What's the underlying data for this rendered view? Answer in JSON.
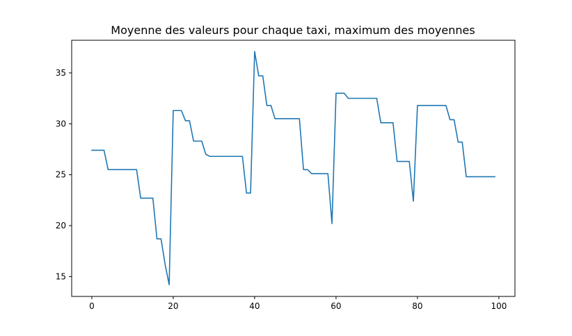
{
  "chart_data": {
    "type": "line",
    "title": "Moyenne des valeurs pour chaque taxi, maximum des moyennes",
    "xlabel": "",
    "ylabel": "",
    "xlim": [
      -4.95,
      103.95
    ],
    "ylim": [
      13.05,
      38.2
    ],
    "xticks": [
      0,
      20,
      40,
      60,
      80,
      100
    ],
    "yticks": [
      15,
      20,
      25,
      30,
      35
    ],
    "grid": false,
    "line_color": "#1f77b4",
    "series": [
      {
        "x": [
          0,
          1,
          2,
          3,
          4,
          5,
          6,
          7,
          8,
          9,
          10,
          11,
          12,
          13,
          14,
          15,
          16,
          17,
          18,
          19,
          20,
          21,
          22,
          23,
          24,
          25,
          26,
          27,
          28,
          29,
          30,
          31,
          32,
          33,
          34,
          35,
          36,
          37,
          38,
          39,
          40,
          41,
          42,
          43,
          44,
          45,
          46,
          47,
          48,
          49,
          50,
          51,
          52,
          53,
          54,
          55,
          56,
          57,
          58,
          59,
          60,
          61,
          62,
          63,
          64,
          65,
          66,
          67,
          68,
          69,
          70,
          71,
          72,
          73,
          74,
          75,
          76,
          77,
          78,
          79,
          80,
          81,
          82,
          83,
          84,
          85,
          86,
          87,
          88,
          89,
          90,
          91,
          92,
          93,
          94,
          95,
          96,
          97,
          98,
          99
        ],
        "values": [
          27.4,
          27.4,
          27.4,
          27.4,
          25.5,
          25.5,
          25.5,
          25.5,
          25.5,
          25.5,
          25.5,
          25.5,
          22.7,
          22.7,
          22.7,
          22.7,
          18.7,
          18.7,
          16.2,
          14.2,
          31.3,
          31.3,
          31.3,
          30.3,
          30.3,
          28.3,
          28.3,
          28.3,
          27.0,
          26.8,
          26.8,
          26.8,
          26.8,
          26.8,
          26.8,
          26.8,
          26.8,
          26.8,
          23.2,
          23.2,
          37.1,
          34.7,
          34.7,
          31.8,
          31.8,
          30.5,
          30.5,
          30.5,
          30.5,
          30.5,
          30.5,
          30.5,
          25.5,
          25.5,
          25.1,
          25.1,
          25.1,
          25.1,
          25.1,
          20.2,
          33.0,
          33.0,
          33.0,
          32.5,
          32.5,
          32.5,
          32.5,
          32.5,
          32.5,
          32.5,
          32.5,
          30.1,
          30.1,
          30.1,
          30.1,
          26.3,
          26.3,
          26.3,
          26.3,
          22.4,
          31.8,
          31.8,
          31.8,
          31.8,
          31.8,
          31.8,
          31.8,
          31.8,
          30.4,
          30.4,
          28.2,
          28.2,
          24.8,
          24.8,
          24.8,
          24.8,
          24.8,
          24.8,
          24.8,
          24.8
        ]
      }
    ]
  }
}
